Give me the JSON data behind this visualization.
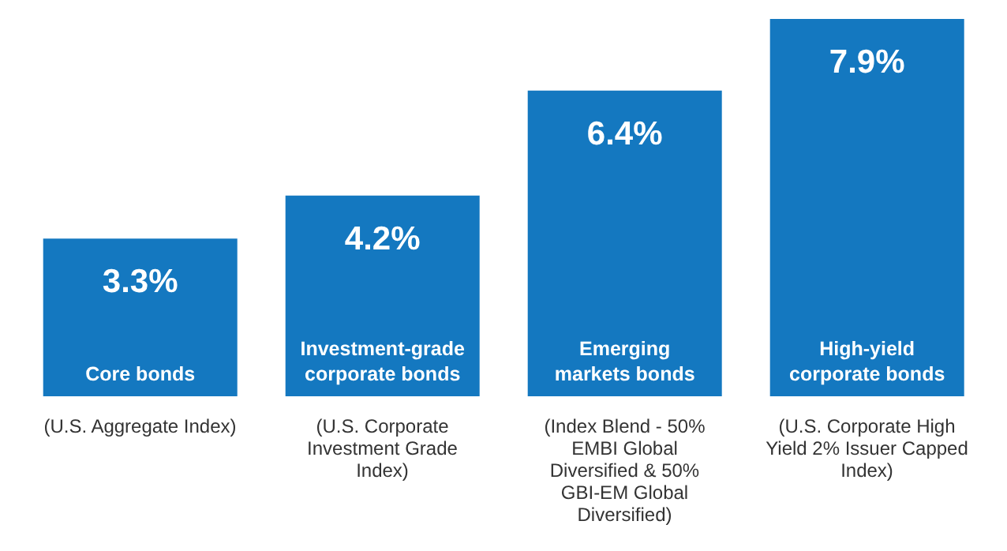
{
  "chart_data": {
    "type": "bar",
    "categories": [
      "Core bonds",
      "Investment-grade corporate bonds",
      "Emerging markets bonds",
      "High-yield corporate bonds"
    ],
    "values": [
      3.3,
      4.2,
      6.4,
      7.9
    ],
    "value_labels": [
      "3.3%",
      "4.2%",
      "6.4%",
      "7.9%"
    ],
    "color": "#1478c0",
    "annotations": [
      "(U.S. Aggregate Index)",
      "(U.S. Corporate Investment Grade Index)",
      "(Index Blend - 50% EMBI Global Diversified & 50% GBI-EM Global Diversified)",
      "(U.S. Corporate High Yield 2% Issuer Capped Index)"
    ],
    "grid": false,
    "legend": false
  }
}
